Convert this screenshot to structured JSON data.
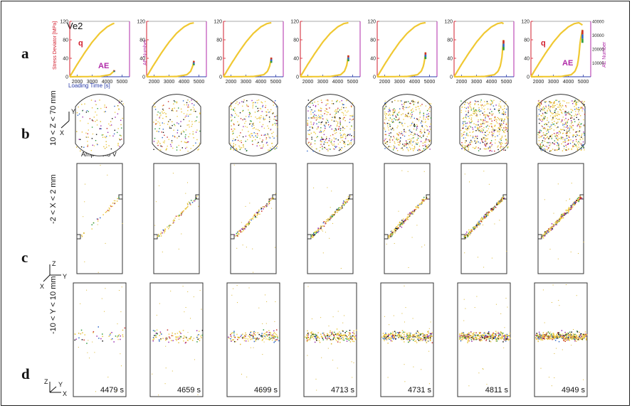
{
  "figure": {
    "row_labels": [
      "a",
      "b",
      "c",
      "d"
    ],
    "sample_name": "Ve2",
    "stress_axis_label": "Stress Deviator [MPa]",
    "ae_axis_label": "AE Number",
    "time_axis_label": "Loading Time [s]",
    "stress_ticks": [
      "0",
      "40",
      "80",
      "120"
    ],
    "ae_ticks": [
      "0",
      "10000",
      "20000",
      "30000",
      "40000"
    ],
    "time_ticks": [
      "2000",
      "3000",
      "4000",
      "5000"
    ],
    "q_label": "q",
    "ae_label": "AE",
    "b_side_label": "10 < Z < 70 mm",
    "b_amp_label": "Amp > 0.5 V",
    "c_side_label": "-2 < X < 2 mm",
    "d_side_label": "-10 < Y < 10 mm",
    "axis_y": "Y",
    "axis_x": "X",
    "axis_z": "Z",
    "times": [
      "4479 s",
      "4659 s",
      "4699 s",
      "4713 s",
      "4731 s",
      "4811 s",
      "4949 s"
    ]
  },
  "colors": {
    "curve": "#f0c832",
    "stress_axis": "#d21c2c",
    "ae_axis": "#b02aa8",
    "time_axis": "#2a3ca8"
  },
  "chart_data": {
    "type": "line",
    "series": [
      {
        "name": "q",
        "x": [
          1500,
          2000,
          2500,
          3000,
          3500,
          4000,
          4400,
          4700,
          4949
        ],
        "values": [
          0,
          27,
          52,
          75,
          94,
          108,
          115,
          117,
          112
        ]
      },
      {
        "name": "AE",
        "x": [
          1500,
          3500,
          4200,
          4450,
          4600,
          4700,
          4750,
          4800,
          4949
        ],
        "values": [
          0,
          200,
          1500,
          4000,
          8000,
          14000,
          20000,
          26000,
          34000
        ]
      }
    ],
    "snapshot_times": [
      4479,
      4659,
      4699,
      4713,
      4731,
      4811,
      4949
    ],
    "xlim": [
      1500,
      5500
    ],
    "ylim_stress": [
      0,
      120
    ],
    "ylim_ae": [
      0,
      40000
    ]
  }
}
